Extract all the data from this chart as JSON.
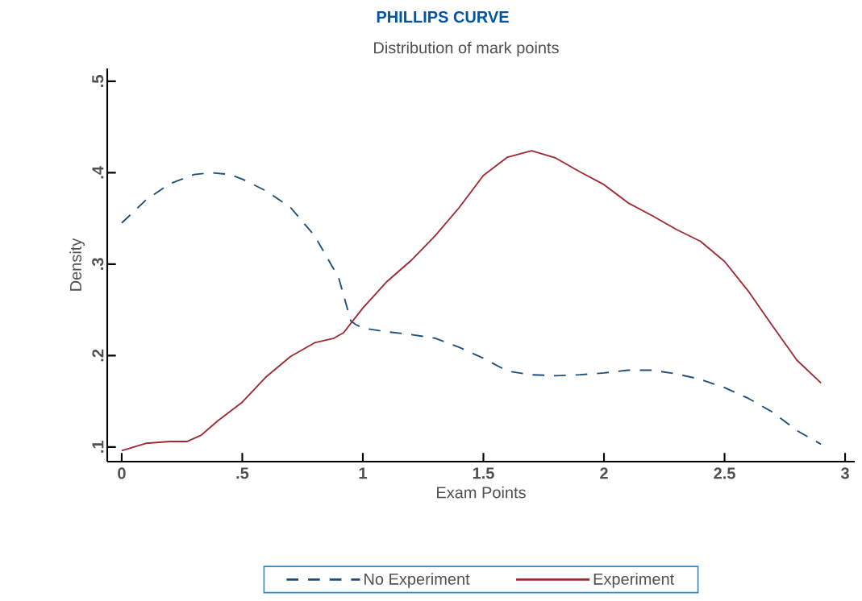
{
  "chart_data": {
    "type": "line",
    "title": "PHILLIPS CURVE",
    "subtitle": "Distribution of mark points",
    "xlabel": "Exam Points",
    "ylabel": "Density",
    "xlim": [
      -0.06,
      3.04
    ],
    "ylim": [
      0.084,
      0.514
    ],
    "xticks": [
      0,
      {
        "value": 0.5,
        "label": ".5"
      },
      1,
      1.5,
      2,
      2.5,
      3
    ],
    "yticks": [
      {
        "value": 0.1,
        "label": ".1"
      },
      {
        "value": 0.2,
        "label": ".2"
      },
      {
        "value": 0.3,
        "label": ".3"
      },
      {
        "value": 0.4,
        "label": ".4"
      },
      {
        "value": 0.5,
        "label": ".5"
      }
    ],
    "legend": "bottom",
    "grid": false,
    "series": [
      {
        "name": "No Experiment",
        "color": "#1f4e79",
        "line_style": "dashed",
        "x": [
          0,
          0.1,
          0.2,
          0.3,
          0.37,
          0.45,
          0.5,
          0.6,
          0.7,
          0.8,
          0.9,
          0.95,
          0.97,
          1.0,
          1.1,
          1.2,
          1.3,
          1.4,
          1.5,
          1.6,
          1.7,
          1.8,
          1.9,
          2.0,
          2.1,
          2.2,
          2.3,
          2.4,
          2.5,
          2.6,
          2.7,
          2.8,
          2.9
        ],
        "values": [
          0.345,
          0.37,
          0.388,
          0.398,
          0.4,
          0.398,
          0.393,
          0.38,
          0.362,
          0.331,
          0.285,
          0.238,
          0.234,
          0.23,
          0.226,
          0.223,
          0.219,
          0.209,
          0.197,
          0.183,
          0.179,
          0.178,
          0.179,
          0.181,
          0.184,
          0.184,
          0.18,
          0.174,
          0.165,
          0.153,
          0.138,
          0.118,
          0.103
        ]
      },
      {
        "name": "Experiment",
        "color": "#9e2b33",
        "line_style": "solid",
        "x": [
          0,
          0.1,
          0.2,
          0.27,
          0.33,
          0.4,
          0.5,
          0.6,
          0.7,
          0.8,
          0.88,
          0.92,
          1.0,
          1.1,
          1.2,
          1.3,
          1.4,
          1.5,
          1.6,
          1.7,
          1.8,
          1.9,
          2.0,
          2.1,
          2.2,
          2.3,
          2.4,
          2.5,
          2.6,
          2.7,
          2.8,
          2.9
        ],
        "values": [
          0.096,
          0.104,
          0.106,
          0.106,
          0.113,
          0.129,
          0.149,
          0.177,
          0.199,
          0.214,
          0.219,
          0.225,
          0.252,
          0.281,
          0.304,
          0.331,
          0.362,
          0.397,
          0.417,
          0.424,
          0.416,
          0.401,
          0.387,
          0.367,
          0.353,
          0.338,
          0.325,
          0.303,
          0.27,
          0.232,
          0.195,
          0.17
        ]
      }
    ]
  }
}
